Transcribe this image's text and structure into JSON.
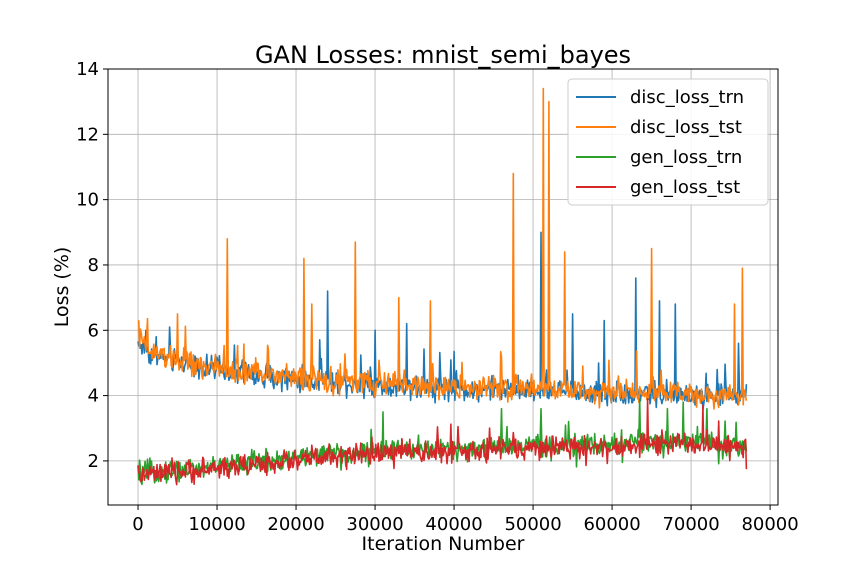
{
  "chart_data": {
    "type": "line",
    "title": "GAN Losses: mnist_semi_bayes",
    "xlabel": "Iteration Number",
    "ylabel": "Loss (%)",
    "xlim": [
      -3800,
      81000
    ],
    "ylim": [
      0.65,
      14
    ],
    "xticks": [
      0,
      10000,
      20000,
      30000,
      40000,
      50000,
      60000,
      70000,
      80000
    ],
    "yticks": [
      2,
      4,
      6,
      8,
      10,
      12,
      14
    ],
    "grid": true,
    "legend_position": "top-right",
    "x": [
      0,
      2000,
      4000,
      6000,
      8000,
      10000,
      12000,
      14000,
      16000,
      18000,
      20000,
      22000,
      24000,
      26000,
      28000,
      30000,
      32000,
      34000,
      36000,
      38000,
      40000,
      42000,
      44000,
      46000,
      48000,
      50000,
      52000,
      54000,
      56000,
      58000,
      60000,
      62000,
      64000,
      66000,
      68000,
      70000,
      72000,
      74000,
      76000,
      77000
    ],
    "series": [
      {
        "name": "disc_loss_trn",
        "color": "#1f77b4",
        "values": [
          5.6,
          5.2,
          5.1,
          5.0,
          4.85,
          4.8,
          4.7,
          4.65,
          4.6,
          4.55,
          4.5,
          4.45,
          4.4,
          4.4,
          4.35,
          4.3,
          4.3,
          4.3,
          4.25,
          4.25,
          4.2,
          4.2,
          4.2,
          4.2,
          4.15,
          4.15,
          4.15,
          4.1,
          4.1,
          4.1,
          4.1,
          4.05,
          4.05,
          4.05,
          4.05,
          4.0,
          4.0,
          4.0,
          4.0,
          4.0
        ],
        "spikes": [
          [
            1000,
            6.0
          ],
          [
            4000,
            6.1
          ],
          [
            24000,
            7.2
          ],
          [
            30000,
            6.0
          ],
          [
            34000,
            6.2
          ],
          [
            37000,
            6.2
          ],
          [
            51000,
            9.0
          ],
          [
            55000,
            6.5
          ],
          [
            59000,
            6.3
          ],
          [
            63000,
            7.6
          ],
          [
            66000,
            6.9
          ],
          [
            68000,
            6.8
          ],
          [
            76000,
            5.6
          ]
        ]
      },
      {
        "name": "disc_loss_tst",
        "color": "#ff7f0e",
        "values": [
          5.7,
          5.3,
          5.15,
          5.05,
          4.9,
          4.85,
          4.75,
          4.7,
          4.65,
          4.6,
          4.55,
          4.5,
          4.45,
          4.45,
          4.4,
          4.35,
          4.35,
          4.35,
          4.3,
          4.3,
          4.25,
          4.25,
          4.25,
          4.25,
          4.2,
          4.2,
          4.2,
          4.15,
          4.15,
          4.15,
          4.15,
          4.1,
          4.1,
          4.1,
          4.1,
          4.05,
          4.05,
          4.05,
          4.05,
          4.05
        ],
        "spikes": [
          [
            0,
            6.3
          ],
          [
            5000,
            6.5
          ],
          [
            11300,
            8.8
          ],
          [
            21000,
            8.2
          ],
          [
            22000,
            6.8
          ],
          [
            27500,
            8.7
          ],
          [
            33000,
            7.0
          ],
          [
            37000,
            6.9
          ],
          [
            47500,
            10.8
          ],
          [
            51300,
            13.4
          ],
          [
            52000,
            13.0
          ],
          [
            54000,
            8.4
          ],
          [
            65000,
            8.5
          ],
          [
            75500,
            6.8
          ],
          [
            76500,
            7.9
          ],
          [
            77200,
            8.2
          ]
        ]
      },
      {
        "name": "gen_loss_trn",
        "color": "#2ca02c",
        "values": [
          1.6,
          1.65,
          1.7,
          1.75,
          1.8,
          1.85,
          1.9,
          1.95,
          2.0,
          2.05,
          2.1,
          2.15,
          2.2,
          2.2,
          2.25,
          2.3,
          2.3,
          2.35,
          2.35,
          2.35,
          2.4,
          2.4,
          2.4,
          2.45,
          2.45,
          2.45,
          2.45,
          2.5,
          2.5,
          2.5,
          2.5,
          2.5,
          2.55,
          2.55,
          2.55,
          2.55,
          2.55,
          2.5,
          2.45,
          2.4
        ],
        "spikes": [
          [
            31000,
            3.5
          ],
          [
            46000,
            3.6
          ],
          [
            51000,
            3.6
          ],
          [
            63500,
            3.9
          ],
          [
            67000,
            3.6
          ],
          [
            69000,
            3.8
          ],
          [
            72000,
            3.6
          ]
        ]
      },
      {
        "name": "gen_loss_tst",
        "color": "#d62728",
        "values": [
          1.55,
          1.6,
          1.62,
          1.68,
          1.72,
          1.78,
          1.82,
          1.88,
          1.92,
          1.98,
          2.02,
          2.08,
          2.12,
          2.12,
          2.18,
          2.22,
          2.22,
          2.28,
          2.28,
          2.28,
          2.32,
          2.32,
          2.32,
          2.38,
          2.38,
          2.38,
          2.38,
          2.42,
          2.42,
          2.42,
          2.42,
          2.42,
          2.48,
          2.48,
          2.48,
          2.48,
          2.48,
          2.42,
          2.38,
          2.32
        ],
        "spikes": [
          [
            64500,
            3.9
          ],
          [
            71500,
            3.7
          ]
        ]
      }
    ]
  }
}
